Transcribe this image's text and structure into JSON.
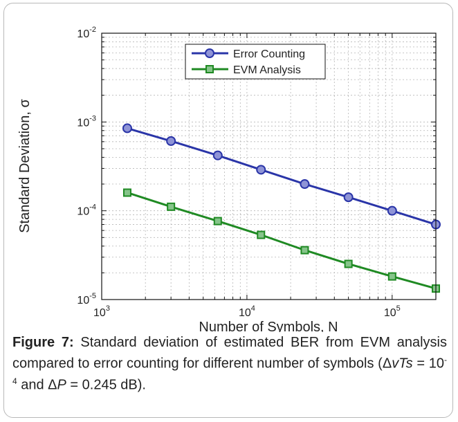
{
  "chart_data": {
    "type": "line",
    "xlabel": "Number of Symbols, N",
    "ylabel": "Standard Deviation, σ",
    "x_scale": "log",
    "y_scale": "log",
    "xlim": [
      1000,
      200000
    ],
    "ylim": [
      1e-05,
      0.01
    ],
    "x_ticks": [
      {
        "base": "10",
        "exp": "3"
      },
      {
        "base": "10",
        "exp": "4"
      },
      {
        "base": "10",
        "exp": "5"
      }
    ],
    "y_ticks": [
      {
        "base": "10",
        "exp": "-5"
      },
      {
        "base": "10",
        "exp": "-4"
      },
      {
        "base": "10",
        "exp": "-3"
      },
      {
        "base": "10",
        "exp": "-2"
      }
    ],
    "grid": true,
    "legend_position": "top-center",
    "x": [
      1500,
      3000,
      6300,
      12500,
      25000,
      50000,
      100000,
      200000
    ],
    "series": [
      {
        "name": "Error Counting",
        "marker": "circle",
        "color": "#2a35a8",
        "values": [
          0.00085,
          0.00061,
          0.00042,
          0.00029,
          0.0002,
          0.000142,
          0.0001,
          7e-05
        ]
      },
      {
        "name": "EVM Analysis",
        "marker": "square",
        "color": "#1f8a23",
        "values": [
          0.00016,
          0.000111,
          7.65e-05,
          5.35e-05,
          3.6e-05,
          2.52e-05,
          1.82e-05,
          1.33e-05
        ]
      }
    ]
  },
  "caption": {
    "figure_label": "Figure 7:",
    "text_1": " Standard deviation of estimated BER from EVM analysis compared to error counting for different number of symbols (Δ",
    "var_1": "vTs",
    "text_2": " = 10",
    "exp_1": "-4",
    "text_3": " and Δ",
    "var_2": "P",
    "text_4": " = 0.245 dB)."
  }
}
